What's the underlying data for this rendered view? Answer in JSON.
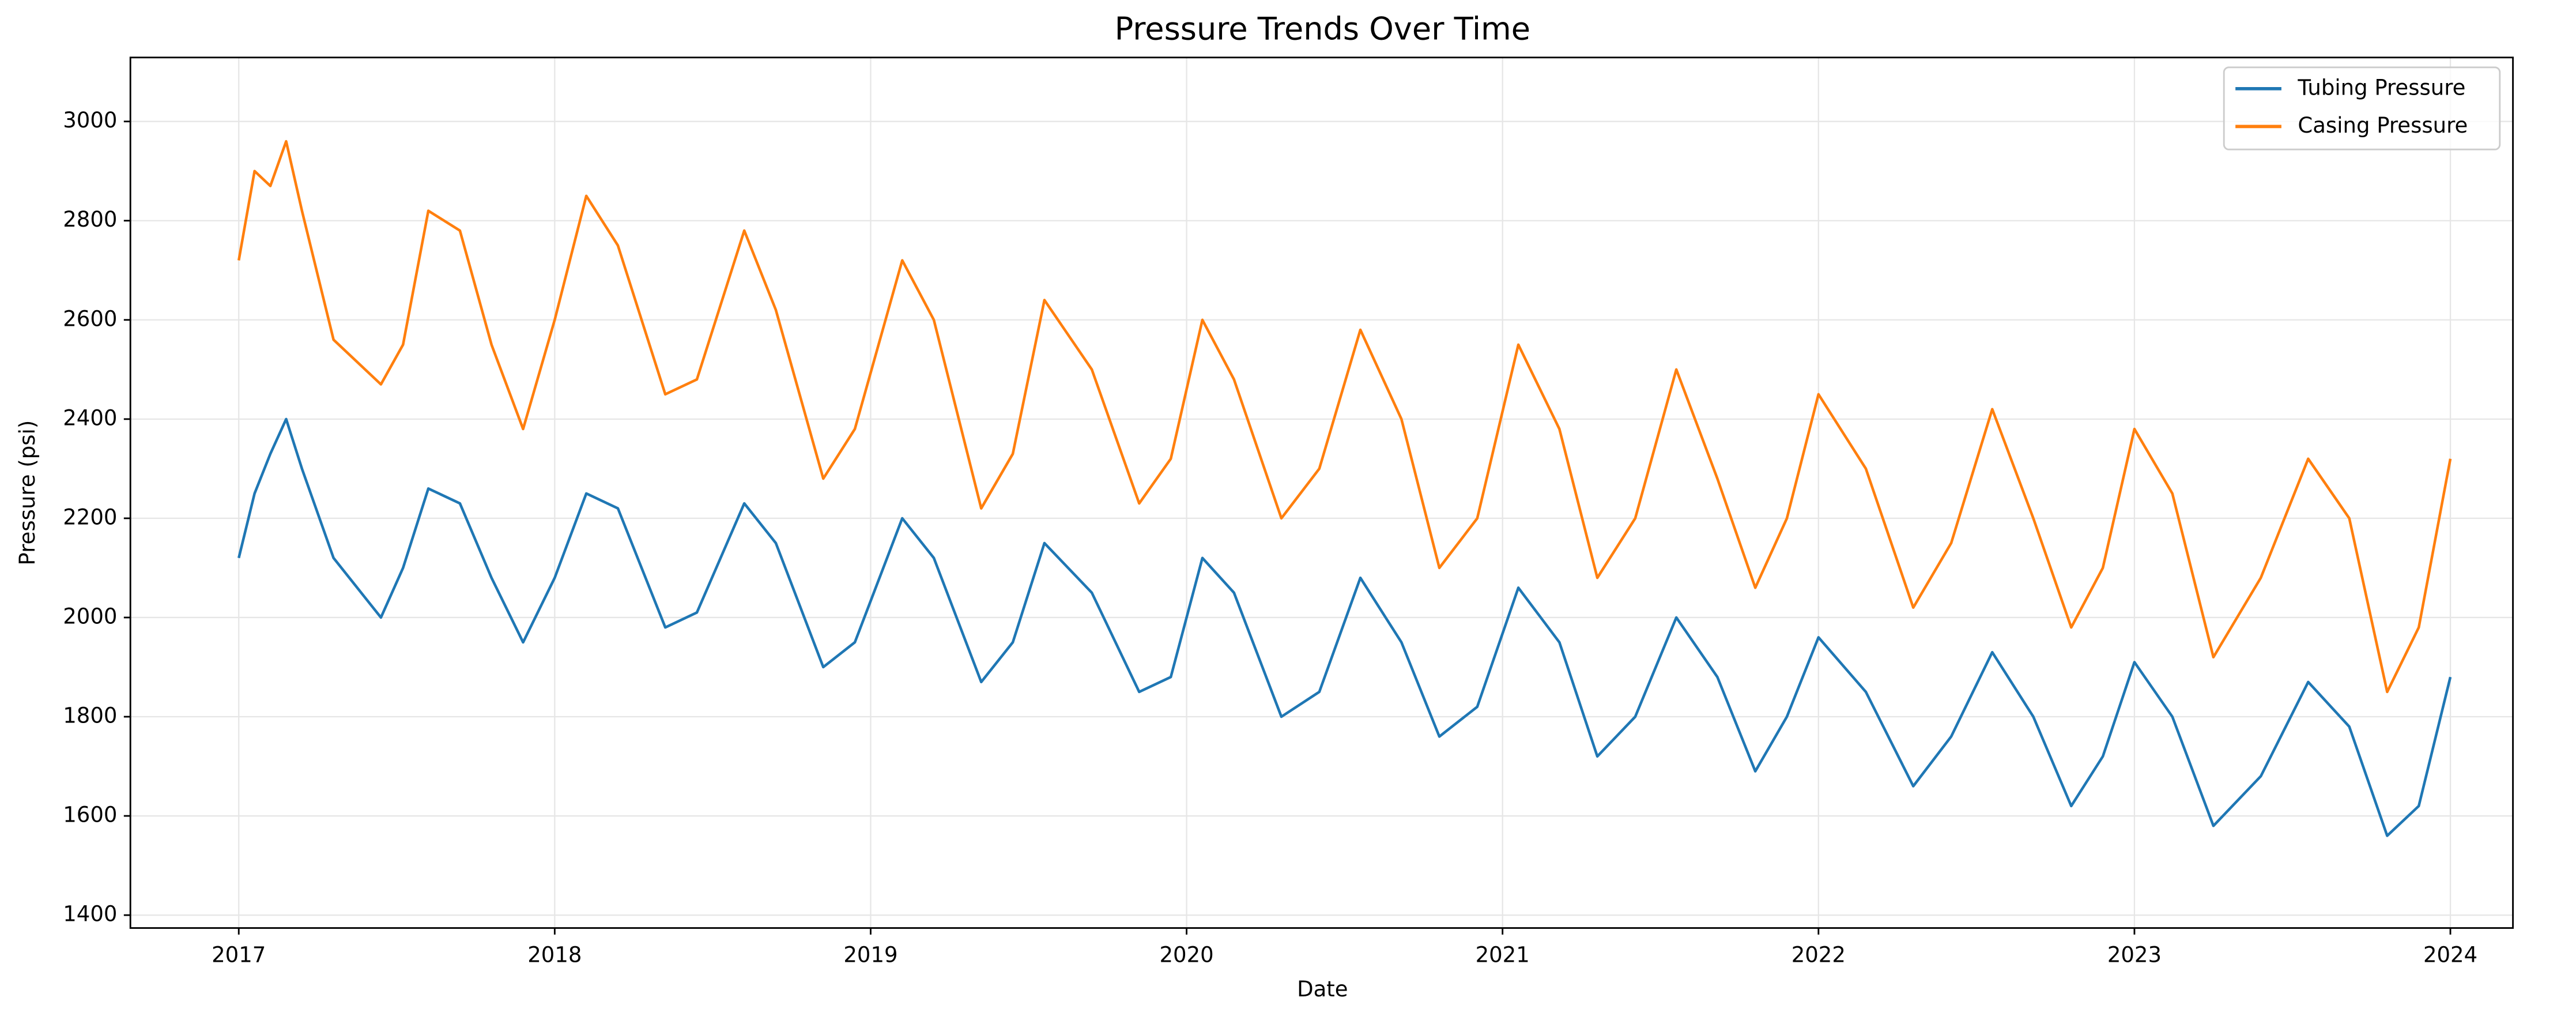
{
  "chart_data": {
    "type": "line",
    "title": "Pressure Trends Over Time",
    "xlabel": "Date",
    "ylabel": "Pressure (psi)",
    "x": [
      2017.0,
      2017.05,
      2017.1,
      2017.15,
      2017.2,
      2017.3,
      2017.45,
      2017.52,
      2017.6,
      2017.7,
      2017.8,
      2017.9,
      2018.0,
      2018.1,
      2018.2,
      2018.35,
      2018.45,
      2018.6,
      2018.7,
      2018.85,
      2018.95,
      2019.1,
      2019.2,
      2019.35,
      2019.45,
      2019.55,
      2019.7,
      2019.85,
      2019.95,
      2020.05,
      2020.15,
      2020.3,
      2020.42,
      2020.55,
      2020.68,
      2020.8,
      2020.92,
      2021.05,
      2021.18,
      2021.3,
      2021.42,
      2021.55,
      2021.68,
      2021.8,
      2021.9,
      2022.0,
      2022.15,
      2022.3,
      2022.42,
      2022.55,
      2022.68,
      2022.8,
      2022.9,
      2023.0,
      2023.12,
      2023.25,
      2023.4,
      2023.55,
      2023.68,
      2023.8,
      2023.9,
      2024.0
    ],
    "series": [
      {
        "name": "Tubing Pressure",
        "color": "#1f77b4",
        "values": [
          2120,
          2250,
          2330,
          2400,
          2300,
          2120,
          2000,
          2100,
          2260,
          2230,
          2080,
          1950,
          2080,
          2250,
          2220,
          1980,
          2010,
          2230,
          2150,
          1900,
          1950,
          2200,
          2120,
          1870,
          1950,
          2150,
          2050,
          1850,
          1880,
          2120,
          2050,
          1800,
          1850,
          2080,
          1950,
          1760,
          1820,
          2060,
          1950,
          1720,
          1800,
          2000,
          1880,
          1690,
          1800,
          1960,
          1850,
          1660,
          1760,
          1930,
          1800,
          1620,
          1720,
          1910,
          1800,
          1580,
          1680,
          1870,
          1780,
          1560,
          1620,
          1880
        ]
      },
      {
        "name": "Casing Pressure",
        "color": "#ff7f0e",
        "values": [
          2720,
          2900,
          2870,
          2960,
          2820,
          2560,
          2470,
          2550,
          2820,
          2780,
          2550,
          2380,
          2600,
          2850,
          2750,
          2450,
          2480,
          2780,
          2620,
          2280,
          2380,
          2720,
          2600,
          2220,
          2330,
          2640,
          2500,
          2230,
          2320,
          2600,
          2480,
          2200,
          2300,
          2580,
          2400,
          2100,
          2200,
          2550,
          2380,
          2080,
          2200,
          2500,
          2280,
          2060,
          2200,
          2450,
          2300,
          2020,
          2150,
          2420,
          2200,
          1980,
          2100,
          2380,
          2250,
          1920,
          2080,
          2320,
          2200,
          1850,
          1980,
          2320
        ]
      }
    ],
    "xlim": [
      2016.657,
      2024.198
    ],
    "xticks": [
      2017,
      2018,
      2019,
      2020,
      2021,
      2022,
      2023,
      2024
    ],
    "ylim": [
      1374,
      3129
    ],
    "yticks": [
      1400,
      1600,
      1800,
      2000,
      2200,
      2400,
      2600,
      2800,
      3000
    ],
    "grid": true,
    "legend": "upper right"
  }
}
